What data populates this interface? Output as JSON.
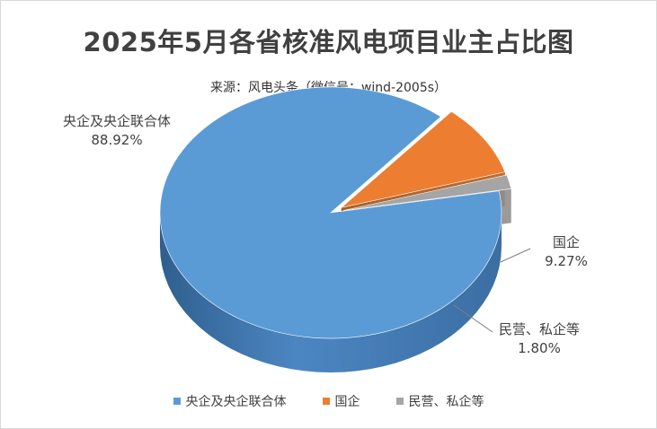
{
  "chart_data": {
    "type": "pie",
    "title": "2025年5月各省核准风电项目业主占比图",
    "subtitle": "来源：风电头条（微信号：wind-2005s）",
    "categories": [
      "央企及央企联合体",
      "国企",
      "民营、私企等"
    ],
    "values": [
      88.92,
      9.27,
      1.8
    ],
    "data_labels": [
      "88.92%",
      "9.27%",
      "1.80%"
    ],
    "colors": [
      "#5B9BD5",
      "#ED7D31",
      "#A5A5A5"
    ],
    "legend_position": "bottom",
    "style": "3d-exploded"
  }
}
